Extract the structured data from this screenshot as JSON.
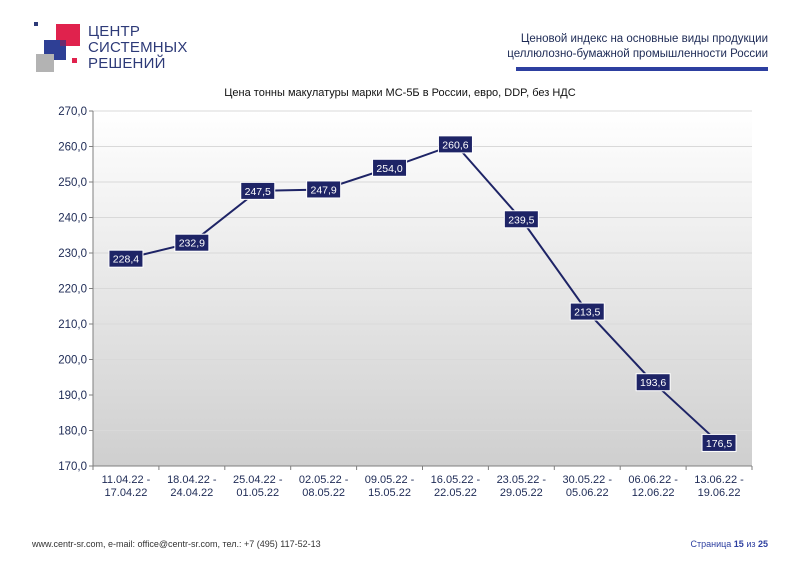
{
  "logo": {
    "lines": [
      "ЦЕНТР",
      "СИСТЕМНЫХ",
      "РЕШЕНИЙ"
    ]
  },
  "header": {
    "line1": "Ценовой индекс на основные виды продукции",
    "line2": "целлюлозно-бумажной промышленности России",
    "rule_color": "#2d3fa0"
  },
  "chart_data": {
    "type": "line",
    "title": "Цена тонны макулатуры марки МС-5Б в России, евро, DDP, без НДС",
    "xlabel": "",
    "ylabel": "",
    "categories": [
      [
        "11.04.22 -",
        "17.04.22"
      ],
      [
        "18.04.22 -",
        "24.04.22"
      ],
      [
        "25.04.22 -",
        "01.05.22"
      ],
      [
        "02.05.22 -",
        "08.05.22"
      ],
      [
        "09.05.22 -",
        "15.05.22"
      ],
      [
        "16.05.22 -",
        "22.05.22"
      ],
      [
        "23.05.22 -",
        "29.05.22"
      ],
      [
        "30.05.22 -",
        "05.06.22"
      ],
      [
        "06.06.22 -",
        "12.06.22"
      ],
      [
        "13.06.22 -",
        "19.06.22"
      ]
    ],
    "values": [
      228.4,
      232.9,
      247.5,
      247.9,
      254.0,
      260.6,
      239.5,
      213.5,
      193.6,
      176.5
    ],
    "data_labels": [
      "228,4",
      "232,9",
      "247,5",
      "247,9",
      "254,0",
      "260,6",
      "239,5",
      "213,5",
      "193,6",
      "176,5"
    ],
    "ylim": [
      170,
      270
    ],
    "yticks": [
      170,
      180,
      190,
      200,
      210,
      220,
      230,
      240,
      250,
      260,
      270
    ],
    "ytick_labels": [
      "170,0",
      "180,0",
      "190,0",
      "200,0",
      "210,0",
      "220,0",
      "230,0",
      "240,0",
      "250,0",
      "260,0",
      "270,0"
    ],
    "grid": true,
    "line_color": "#1e2466",
    "label_bg": "#1e2466"
  },
  "footer": {
    "contacts": "www.centr-sr.com, e-mail: office@centr-sr.com, тел.: +7 (495) 117-52-13",
    "page_word": "Страница",
    "page_num": "15",
    "page_of": "из",
    "page_total": "25"
  }
}
